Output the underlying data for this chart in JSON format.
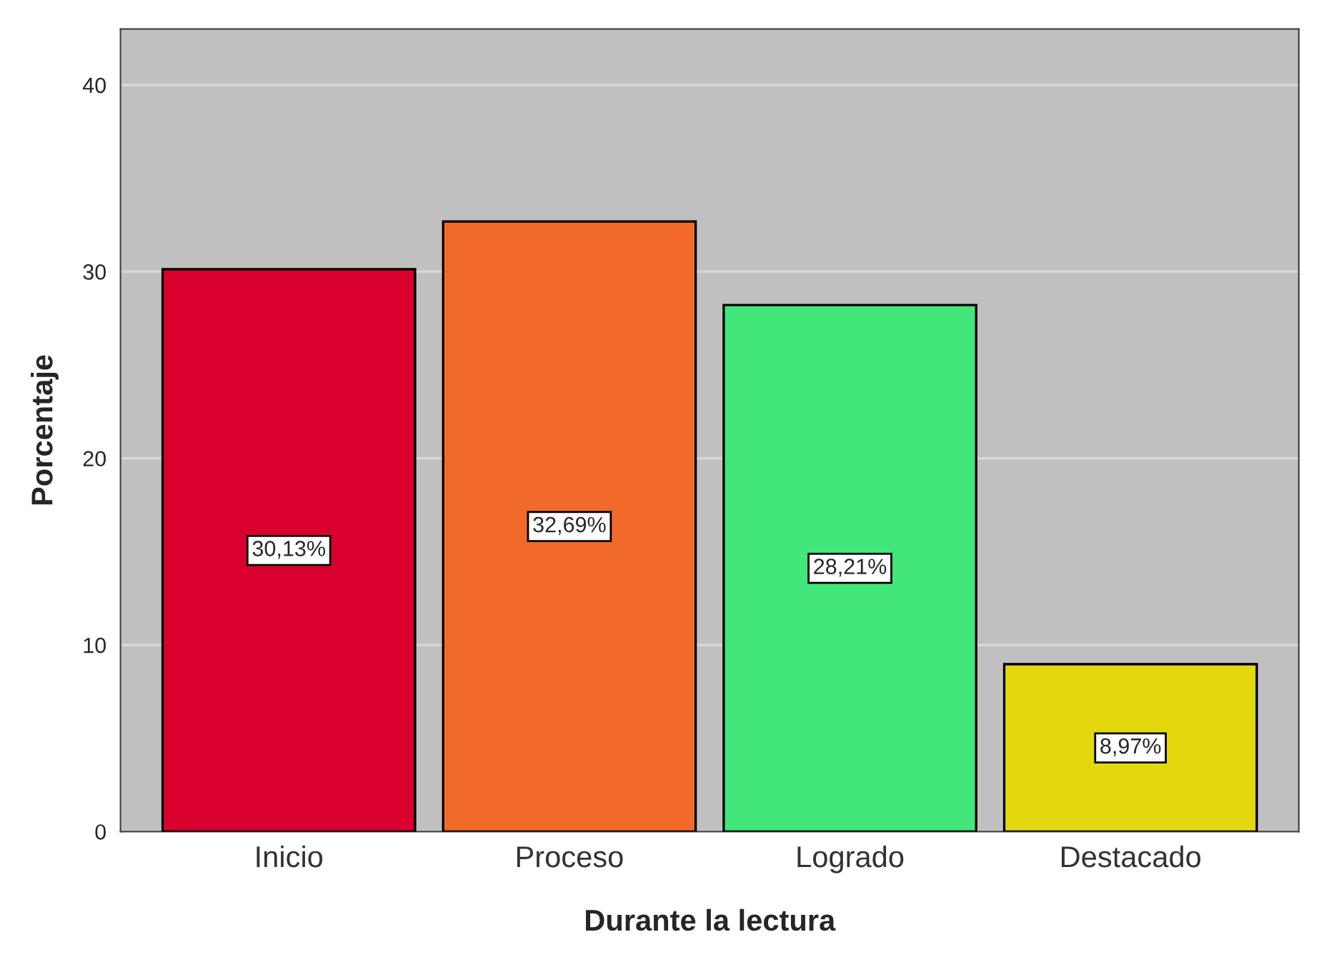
{
  "chart_data": {
    "type": "bar",
    "xlabel": "Durante la lectura",
    "ylabel": "Porcentaje",
    "categories": [
      "Inicio",
      "Proceso",
      "Logrado",
      "Destacado"
    ],
    "values": [
      30.13,
      32.69,
      28.21,
      8.97
    ],
    "value_labels": [
      "30,13%",
      "32,69%",
      "28,21%",
      "8,97%"
    ],
    "colors": [
      "#d9002e",
      "#f26a2a",
      "#42e67b",
      "#e3d80e"
    ],
    "ylim": [
      0,
      43
    ],
    "yticks": [
      0,
      10,
      20,
      30,
      40
    ],
    "grid": "y"
  }
}
